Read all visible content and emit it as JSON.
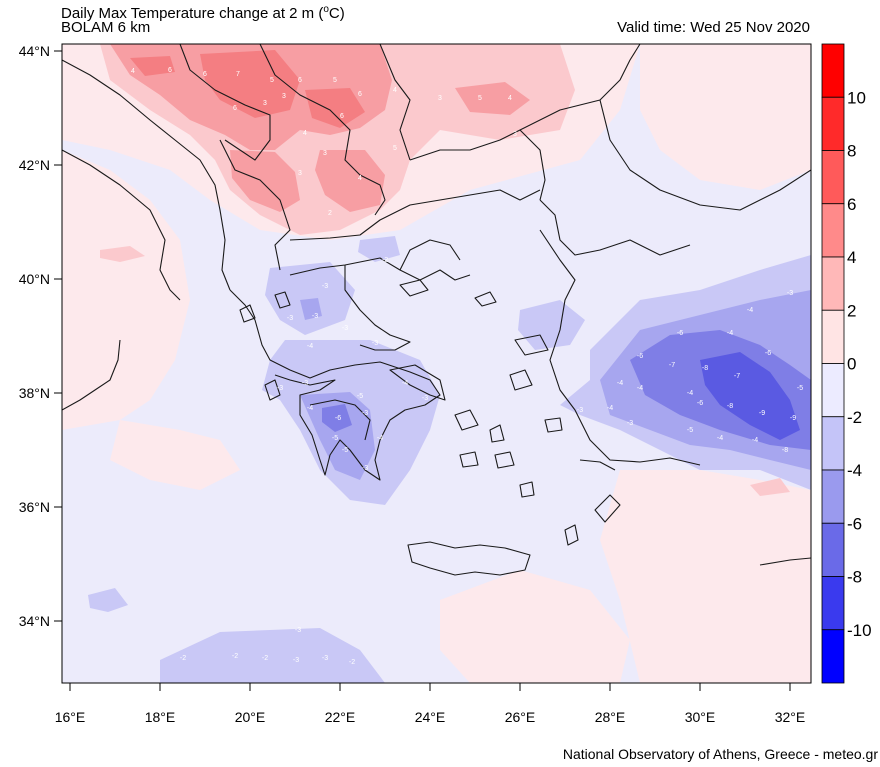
{
  "header": {
    "title": "Daily Max Temperature change at 2 m (°C)",
    "title_main": "Daily Max Temperature change at 2 m (",
    "title_unit": "o",
    "title_end": "C)",
    "subtitle": "BOLAM 6 km",
    "valid_time": "Valid time: Wed 25 Nov 2020"
  },
  "footer": {
    "credit": "National Observatory of Athens, Greece - meteo.gr"
  },
  "axes": {
    "lon_ticks": [
      "16°E",
      "18°E",
      "20°E",
      "22°E",
      "24°E",
      "26°E",
      "28°E",
      "30°E",
      "32°E"
    ],
    "lat_ticks": [
      "44°N",
      "42°N",
      "40°N",
      "38°N",
      "36°N",
      "34°N"
    ]
  },
  "colorbar": {
    "labels": [
      "10",
      "8",
      "6",
      "4",
      "2",
      "0",
      "-2",
      "-4",
      "-6",
      "-8",
      "-10"
    ],
    "colors": [
      "#ff0000",
      "#ff2a2a",
      "#ff5a5a",
      "#ff8a8a",
      "#ffb8b8",
      "#ffe4e4",
      "#ecebff",
      "#c4c4f8",
      "#9a9aee",
      "#6a6ae8",
      "#3a3aee",
      "#0000ff"
    ]
  },
  "map_values": {
    "north": [
      "4",
      "6",
      "6",
      "7",
      "5",
      "6",
      "5",
      "6",
      "4",
      "3",
      "5",
      "4",
      "3",
      "6",
      "3",
      "4",
      "3",
      "2",
      "4",
      "5",
      "3",
      "6",
      "3"
    ],
    "greece": [
      "-3",
      "-3",
      "-3",
      "-4",
      "-3",
      "-3",
      "-2",
      "-3",
      "-5",
      "-6",
      "-3",
      "-4",
      "-5",
      "-4",
      "-3",
      "-3",
      "-4",
      "-5",
      "-3"
    ],
    "turkey": [
      "-3",
      "-4",
      "-4",
      "-6",
      "-4",
      "-4",
      "-6",
      "-7",
      "-8",
      "-7",
      "-6",
      "-5",
      "-4",
      "-6",
      "-8",
      "-9",
      "-5",
      "-4",
      "-4",
      "-9",
      "-8",
      "-3",
      "-4",
      "-3"
    ],
    "south": [
      "-2",
      "-2",
      "-3",
      "-3",
      "-2",
      "-3",
      "-2"
    ]
  }
}
